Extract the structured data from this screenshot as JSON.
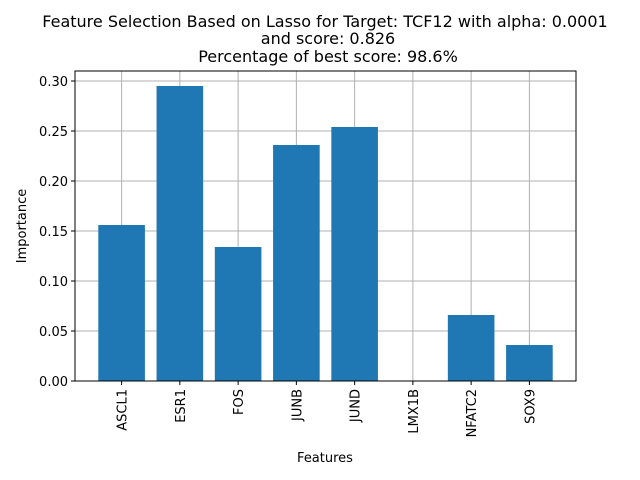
{
  "chart_data": {
    "type": "bar",
    "title_lines": [
      "Feature Selection Based on Lasso for Target: TCF12 with alpha: 0.0001",
      "and score: 0.826",
      "Percentage of best score: 98.6%"
    ],
    "xlabel": "Features",
    "ylabel": "Importance",
    "categories": [
      "ASCL1",
      "ESR1",
      "FOS",
      "JUNB",
      "JUND",
      "LMX1B",
      "NFATC2",
      "SOX9"
    ],
    "values": [
      0.156,
      0.295,
      0.134,
      0.236,
      0.254,
      0.0,
      0.066,
      0.036
    ],
    "ylim": [
      0,
      0.31
    ],
    "yticks": [
      0.0,
      0.05,
      0.1,
      0.15,
      0.2,
      0.25,
      0.3
    ],
    "ytick_labels": [
      "0.00",
      "0.05",
      "0.10",
      "0.15",
      "0.20",
      "0.25",
      "0.30"
    ],
    "grid": true,
    "bar_color": "#1f77b4",
    "grid_color": "#b0b0b0"
  }
}
